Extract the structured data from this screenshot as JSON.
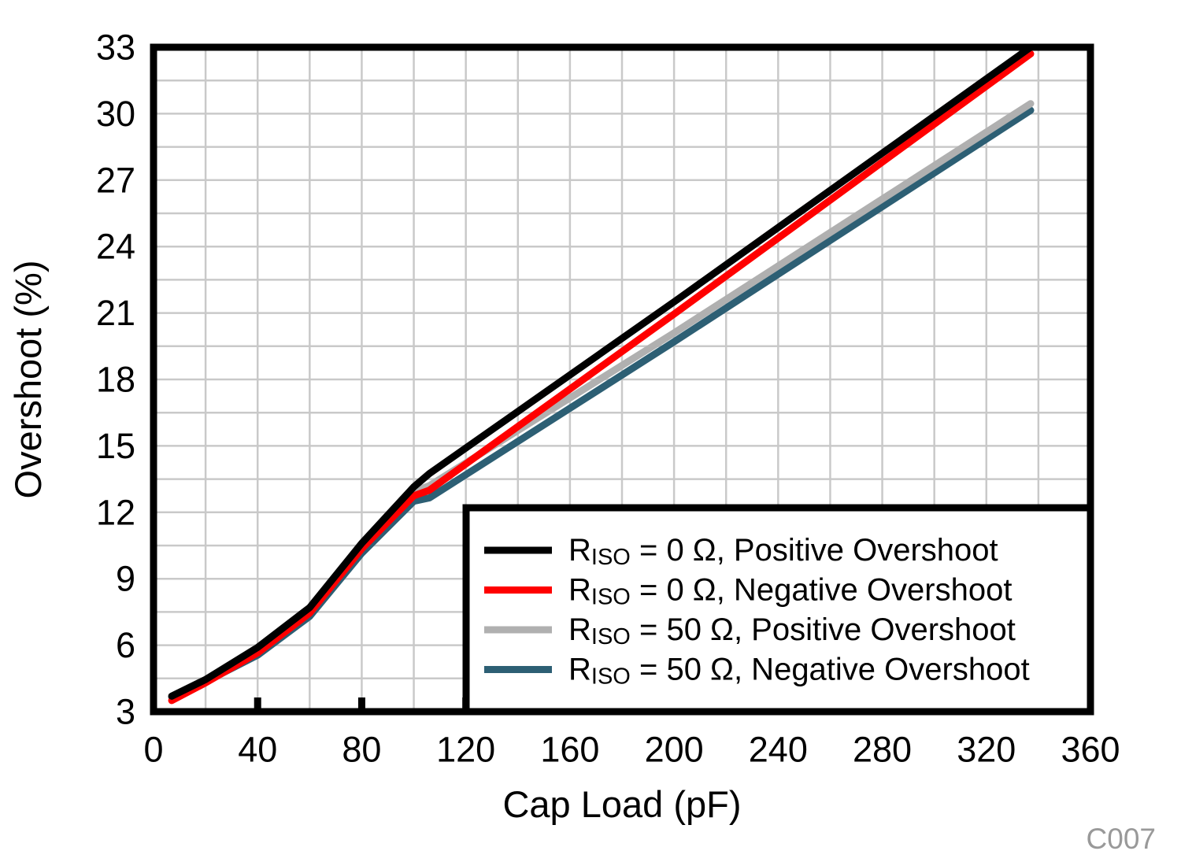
{
  "figure": {
    "annotation": "C007",
    "annotation_color": "#999999",
    "background": "#FFFFFF"
  },
  "chart_data": {
    "type": "line",
    "title": "",
    "xlabel": "Cap Load (pF)",
    "ylabel": "Overshoot (%)",
    "xlim": [
      0,
      360
    ],
    "ylim": [
      3,
      33
    ],
    "xticks": [
      0,
      40,
      80,
      120,
      160,
      200,
      240,
      280,
      320,
      360
    ],
    "yticks": [
      3,
      6,
      9,
      12,
      15,
      18,
      21,
      24,
      27,
      30,
      33
    ],
    "minor_grid_step_x": 20,
    "minor_grid_step_y": 1.5,
    "grid_on": true,
    "grid_color": "#C9C9C9",
    "frame_color": "#000000",
    "legend_position": "inside-bottom-right",
    "series": [
      {
        "name": "RISO = 0 Ω, Positive Overshoot",
        "label_prefix": "R",
        "label_sub": "ISO",
        "label_rest": " = 0 Ω, Positive Overshoot",
        "color": "#000000",
        "points": [
          [
            7,
            3.7
          ],
          [
            20,
            4.45
          ],
          [
            40,
            5.9
          ],
          [
            60,
            7.7
          ],
          [
            80,
            10.6
          ],
          [
            100,
            13.15
          ],
          [
            106,
            13.75
          ],
          [
            200,
            21.5
          ],
          [
            337,
            33.0
          ]
        ]
      },
      {
        "name": "RISO = 0 Ω, Negative Overshoot",
        "label_prefix": "R",
        "label_sub": "ISO",
        "label_rest": " = 0 Ω, Negative Overshoot",
        "color": "#FF0000",
        "points": [
          [
            7,
            3.5
          ],
          [
            20,
            4.3
          ],
          [
            40,
            5.65
          ],
          [
            60,
            7.45
          ],
          [
            80,
            10.35
          ],
          [
            100,
            12.75
          ],
          [
            106,
            13.0
          ],
          [
            200,
            20.95
          ],
          [
            337,
            32.7
          ]
        ]
      },
      {
        "name": "RISO = 50 Ω, Positive Overshoot",
        "label_prefix": "R",
        "label_sub": "ISO",
        "label_rest": " = 50 Ω, Positive Overshoot",
        "color": "#B0B0B0",
        "points": [
          [
            7,
            3.65
          ],
          [
            20,
            4.4
          ],
          [
            40,
            5.75
          ],
          [
            60,
            7.55
          ],
          [
            80,
            10.45
          ],
          [
            100,
            12.95
          ],
          [
            106,
            13.2
          ],
          [
            200,
            20.1
          ],
          [
            337,
            30.45
          ]
        ]
      },
      {
        "name": "RISO = 50 Ω, Negative Overshoot",
        "label_prefix": "R",
        "label_sub": "ISO",
        "label_rest": " = 50 Ω, Negative Overshoot",
        "color": "#2D5F74",
        "points": [
          [
            7,
            3.65
          ],
          [
            20,
            4.35
          ],
          [
            40,
            5.55
          ],
          [
            60,
            7.3
          ],
          [
            80,
            10.15
          ],
          [
            100,
            12.5
          ],
          [
            106,
            12.65
          ],
          [
            200,
            19.7
          ],
          [
            337,
            30.15
          ]
        ]
      }
    ]
  }
}
